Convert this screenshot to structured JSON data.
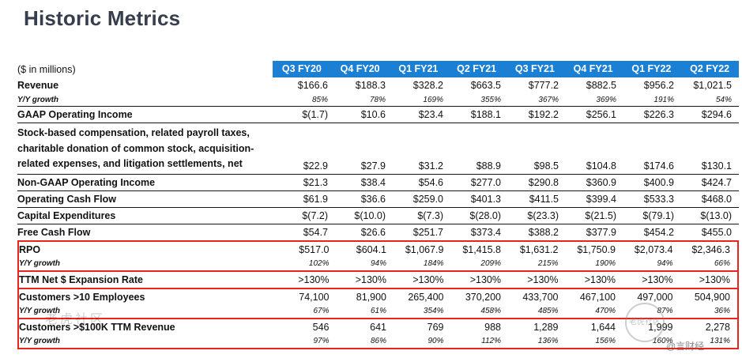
{
  "title": "Historic Metrics",
  "units_label": "($ in millions)",
  "accent_colors": {
    "header_blue": "#1b80d3",
    "highlight_red": "#e8251d"
  },
  "watermarks": {
    "left_text": "老虎社区",
    "badge_text": "老虎社区",
    "credit_text": "@言财经"
  },
  "chart_data": {
    "type": "table",
    "title": "Historic Metrics",
    "units": "$ in millions",
    "columns": [
      "Q3 FY20",
      "Q4 FY20",
      "Q1 FY21",
      "Q2 FY21",
      "Q3 FY21",
      "Q4 FY21",
      "Q1 FY22",
      "Q2 FY22"
    ],
    "rows": [
      {
        "label": "Revenue",
        "style": "metric",
        "top_border": false,
        "values": [
          "$166.6",
          "$188.3",
          "$328.2",
          "$663.5",
          "$777.2",
          "$882.5",
          "$956.2",
          "$1,021.5"
        ]
      },
      {
        "label": "Y/Y growth",
        "style": "growth",
        "top_border": false,
        "values": [
          "85%",
          "78%",
          "169%",
          "355%",
          "367%",
          "369%",
          "191%",
          "54%"
        ]
      },
      {
        "label": "GAAP Operating Income",
        "style": "metric",
        "top_border": true,
        "values": [
          "$(1.7)",
          "$10.6",
          "$23.4",
          "$188.1",
          "$192.2",
          "$256.1",
          "$226.3",
          "$294.6"
        ]
      },
      {
        "label": "Stock-based compensation, related payroll taxes, charitable donation of common stock, acquisition-related expenses, and litigation settlements, net",
        "style": "multiline",
        "top_border": true,
        "values": [
          "$22.9",
          "$27.9",
          "$31.2",
          "$88.9",
          "$98.5",
          "$104.8",
          "$174.6",
          "$130.1"
        ]
      },
      {
        "label": "Non-GAAP Operating Income",
        "style": "metric",
        "top_border": true,
        "values": [
          "$21.3",
          "$38.4",
          "$54.6",
          "$277.0",
          "$290.8",
          "$360.9",
          "$400.9",
          "$424.7"
        ]
      },
      {
        "label": "Operating Cash Flow",
        "style": "metric",
        "top_border": true,
        "values": [
          "$61.9",
          "$36.6",
          "$259.0",
          "$401.3",
          "$411.5",
          "$399.4",
          "$533.3",
          "$468.0"
        ]
      },
      {
        "label": "Capital Expenditures",
        "style": "metric",
        "top_border": true,
        "values": [
          "$(7.2)",
          "$(10.0)",
          "$(7.3)",
          "$(28.0)",
          "$(23.3)",
          "$(21.5)",
          "$(79.1)",
          "$(13.0)"
        ]
      },
      {
        "label": "Free Cash Flow",
        "style": "metric",
        "top_border": true,
        "values": [
          "$54.7",
          "$26.6",
          "$251.7",
          "$373.4",
          "$388.2",
          "$377.9",
          "$454.2",
          "$455.0"
        ]
      },
      {
        "label": "RPO",
        "style": "metric",
        "top_border": false,
        "red_group": 1,
        "values": [
          "$517.0",
          "$604.1",
          "$1,067.9",
          "$1,415.8",
          "$1,631.2",
          "$1,750.9",
          "$2,073.4",
          "$2,346.3"
        ]
      },
      {
        "label": "Y/Y growth",
        "style": "growth",
        "top_border": false,
        "red_group": 1,
        "values": [
          "102%",
          "94%",
          "184%",
          "209%",
          "215%",
          "190%",
          "94%",
          "66%"
        ]
      },
      {
        "label": "TTM Net $ Expansion Rate",
        "style": "metric",
        "top_border": false,
        "red_group": 2,
        "values": [
          ">130%",
          ">130%",
          ">130%",
          ">130%",
          ">130%",
          ">130%",
          ">130%",
          ">130%"
        ]
      },
      {
        "label": "Customers >10 Employees",
        "style": "metric",
        "top_border": false,
        "red_group": 3,
        "values": [
          "74,100",
          "81,900",
          "265,400",
          "370,200",
          "433,700",
          "467,100",
          "497,000",
          "504,900"
        ]
      },
      {
        "label": "Y/Y growth",
        "style": "growth",
        "top_border": false,
        "red_group": 3,
        "values": [
          "67%",
          "61%",
          "354%",
          "458%",
          "485%",
          "470%",
          "87%",
          "36%"
        ]
      },
      {
        "label": "Customers >$100K TTM Revenue",
        "style": "metric",
        "top_border": false,
        "red_group": 4,
        "values": [
          "546",
          "641",
          "769",
          "988",
          "1,289",
          "1,644",
          "1,999",
          "2,278"
        ]
      },
      {
        "label": "Y/Y growth",
        "style": "growth",
        "top_border": false,
        "red_group": 4,
        "values": [
          "97%",
          "86%",
          "90%",
          "112%",
          "136%",
          "156%",
          "160%",
          "131%"
        ]
      }
    ]
  }
}
